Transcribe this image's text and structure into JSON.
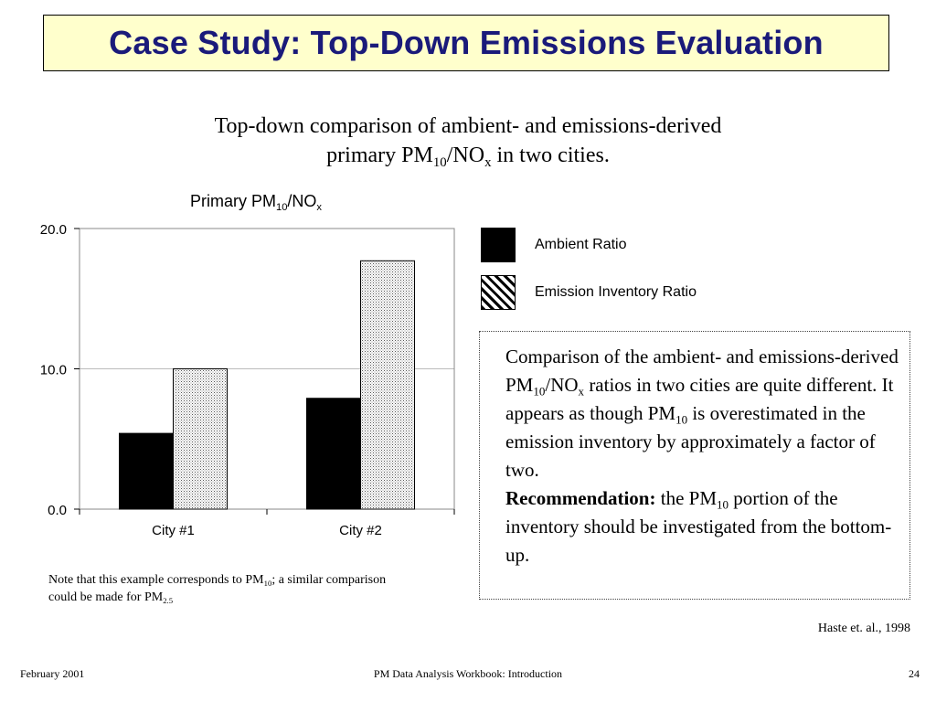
{
  "slide": {
    "title": "Case Study: Top-Down Emissions Evaluation",
    "subtitle": {
      "line1": "Top-down comparison of ambient- and emissions-derived",
      "line2_a": "primary PM",
      "line2_sub1": "10",
      "line2_b": "/NO",
      "line2_sub2": "x",
      "line2_c": " in two cities."
    },
    "note": {
      "a": "Note that this example corresponds to PM",
      "sub1": "10",
      "b": "; a similar comparison could be made for PM",
      "sub2": "2.5"
    },
    "callout": {
      "a": "Comparison of the ambient- and emissions-derived PM",
      "sub1": "10",
      "b": "/NO",
      "sub2": "x",
      "c": " ratios in two cities are quite different.  It appears as though PM",
      "sub3": "10",
      "d": " is overestimated in the emission inventory by approximately a factor of two.",
      "rec_label": "Recommendation:",
      "e": "  the PM",
      "sub4": "10",
      "f": " portion of the inventory should be investigated from the bottom-up."
    },
    "citation": "Haste et. al., 1998",
    "footer": {
      "left": "February 2001",
      "center": "PM Data Analysis Workbook: Introduction",
      "right": "24"
    }
  },
  "chart_data": {
    "type": "bar",
    "title_a": "Primary PM",
    "title_sub1": "10",
    "title_b": "/NO",
    "title_sub2": "x",
    "categories": [
      "City #1",
      "City #2"
    ],
    "series": [
      {
        "name": "Ambient Ratio",
        "values": [
          5.4,
          7.9
        ],
        "fill": "solid",
        "color": "#000000"
      },
      {
        "name": "Emission Inventory Ratio",
        "values": [
          10.0,
          17.7
        ],
        "fill": "pattern",
        "color": "#000000"
      }
    ],
    "yticks": [
      0,
      10,
      20
    ],
    "ytick_labels": [
      "0.0",
      "10.0",
      "20.0"
    ],
    "ylim": [
      0,
      20
    ],
    "grid": true,
    "legend": "right"
  }
}
